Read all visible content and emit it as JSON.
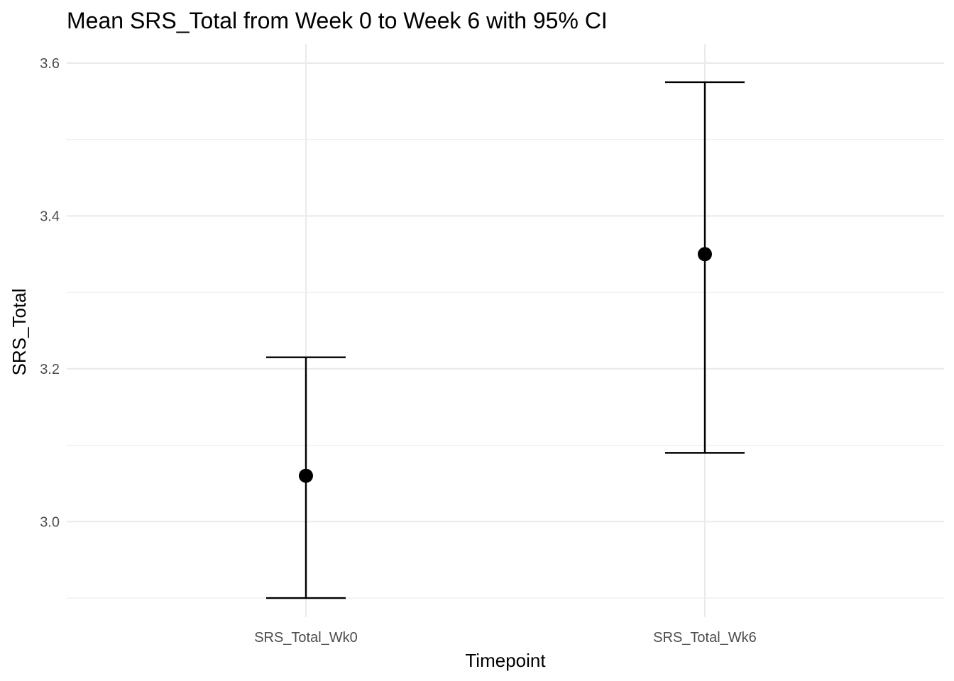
{
  "chart_data": {
    "type": "errorbar",
    "title": "Mean SRS_Total from Week 0 to Week 6 with 95% CI",
    "xlabel": "Timepoint",
    "ylabel": "SRS_Total",
    "categories": [
      "SRS_Total_Wk0",
      "SRS_Total_Wk6"
    ],
    "means": [
      3.06,
      3.35
    ],
    "ci_lower": [
      2.9,
      3.09
    ],
    "ci_upper": [
      3.215,
      3.575
    ],
    "ylim": [
      2.875,
      3.625
    ],
    "yticks": [
      3.0,
      3.2,
      3.4,
      3.6
    ],
    "ytick_labels": [
      "3.0",
      "3.2",
      "3.4",
      "3.6"
    ],
    "y_minor_ticks": [
      2.9,
      3.1,
      3.3,
      3.5
    ],
    "grid": true,
    "legend": "none"
  }
}
